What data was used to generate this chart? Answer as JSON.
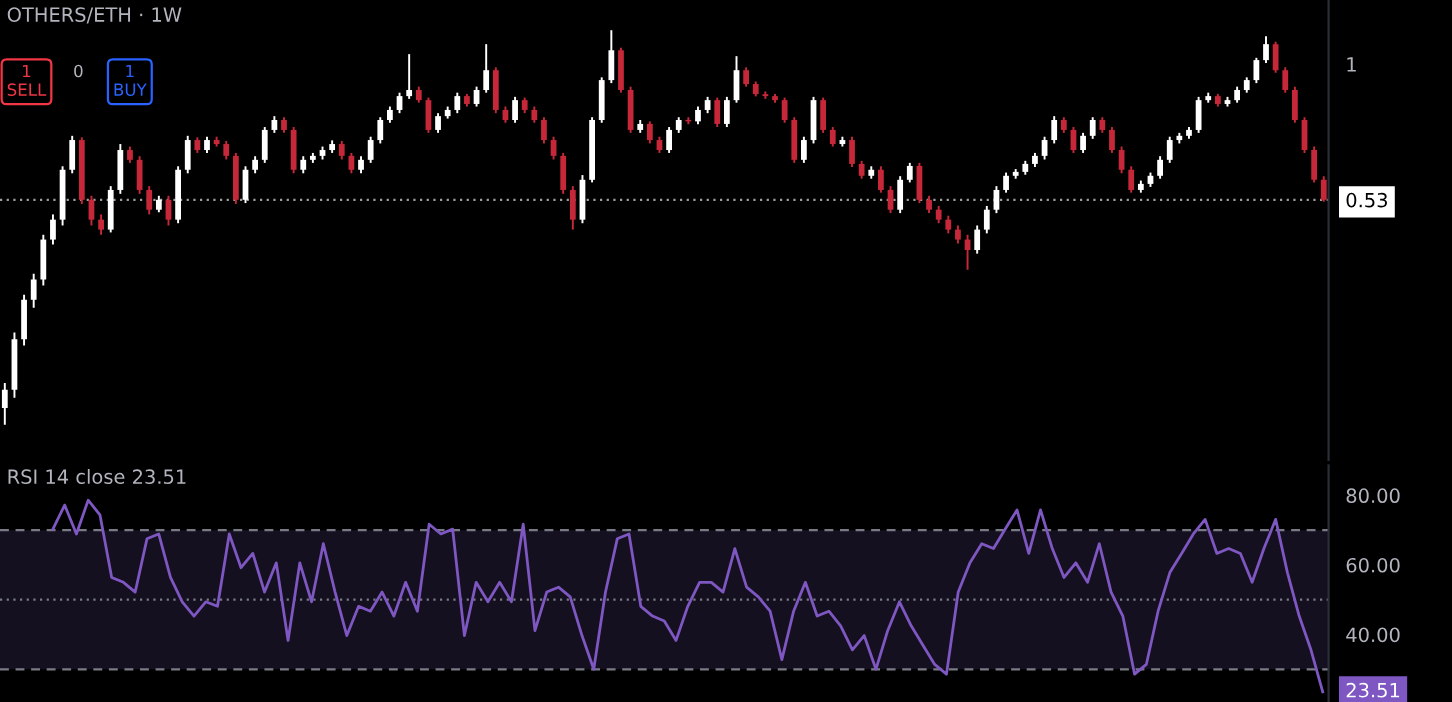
{
  "chart_data": [
    {
      "type": "candlestick",
      "title": "OTHERS/ETH · 1W",
      "log": "y",
      "ylim": [
        0.157,
        1.35
      ],
      "yticks": [
        {
          "value": 1,
          "label": "1"
        },
        {
          "value": 0.53,
          "label": "0.53"
        }
      ],
      "grid": false,
      "annotations": [
        "1\nSELL",
        "0",
        "1\nBUY"
      ],
      "colors": [
        "#ffffff",
        "#ffffff",
        "#ffffff",
        "#ffffff",
        "#ffffff",
        "#ffffff",
        "#ffffff",
        "#ffffff",
        "#c62839",
        "#c62839",
        "#c62839",
        "#ffffff",
        "#ffffff",
        "#c62839",
        "#c62839",
        "#c62839",
        "#ffffff",
        "#c62839",
        "#ffffff",
        "#ffffff",
        "#c62839",
        "#ffffff",
        "#c62839",
        "#c62839",
        "#c62839",
        "#ffffff",
        "#ffffff",
        "#ffffff",
        "#ffffff",
        "#c62839",
        "#c62839",
        "#ffffff",
        "#ffffff",
        "#ffffff",
        "#ffffff",
        "#c62839",
        "#c62839",
        "#ffffff",
        "#ffffff",
        "#ffffff",
        "#ffffff",
        "#ffffff",
        "#ffffff",
        "#c62839",
        "#c62839",
        "#ffffff",
        "#ffffff",
        "#ffffff",
        "#c62839",
        "#ffffff",
        "#ffffff",
        "#c62839",
        "#c62839",
        "#ffffff",
        "#c62839",
        "#c62839",
        "#c62839",
        "#c62839",
        "#c62839",
        "#c62839",
        "#ffffff",
        "#ffffff",
        "#ffffff",
        "#ffffff",
        "#c62839",
        "#c62839",
        "#ffffff",
        "#c62839",
        "#c62839",
        "#ffffff",
        "#ffffff",
        "#c62839",
        "#ffffff",
        "#ffffff",
        "#c62839",
        "#ffffff",
        "#ffffff",
        "#c62839",
        "#c62839",
        "#c62839",
        "#c62839",
        "#c62839",
        "#c62839",
        "#ffffff",
        "#ffffff",
        "#c62839",
        "#c62839",
        "#ffffff",
        "#c62839",
        "#c62839",
        "#ffffff",
        "#c62839",
        "#c62839",
        "#ffffff",
        "#ffffff",
        "#c62839",
        "#c62839",
        "#c62839",
        "#c62839",
        "#c62839",
        "#c62839",
        "#ffffff",
        "#ffffff",
        "#ffffff",
        "#ffffff",
        "#ffffff",
        "#ffffff",
        "#ffffff",
        "#ffffff",
        "#ffffff",
        "#c62839",
        "#c62839",
        "#ffffff",
        "#ffffff",
        "#c62839",
        "#c62839",
        "#c62839",
        "#c62839",
        "#ffffff",
        "#ffffff",
        "#ffffff",
        "#ffffff",
        "#ffffff",
        "#ffffff",
        "#ffffff",
        "#ffffff",
        "#c62839",
        "#ffffff",
        "#ffffff",
        "#ffffff",
        "#ffffff",
        "#ffffff",
        "#c62839",
        "#c62839",
        "#c62839",
        "#c62839",
        "#c62839",
        "#c62839"
      ],
      "ref_lines": [
        {
          "axis": "y",
          "value": 0.53,
          "label": null,
          "color": "#9e9e9e",
          "line_style": "dotted"
        }
      ],
      "categories": [
        null,
        null,
        null,
        null,
        null,
        null,
        null,
        null,
        null,
        null,
        null,
        null,
        null,
        null,
        null,
        null,
        null,
        null,
        null,
        null,
        null,
        null,
        null,
        null,
        null,
        null,
        null,
        null,
        null,
        null,
        null,
        null,
        null,
        null,
        null,
        null,
        null,
        null,
        null,
        null,
        null,
        null,
        null,
        null,
        null,
        null,
        null,
        null,
        null,
        null,
        null,
        null,
        null,
        null,
        null,
        null,
        null,
        null,
        null,
        null,
        null,
        null,
        null,
        null,
        null,
        null,
        null,
        null,
        null,
        null,
        null,
        null,
        null,
        null,
        null,
        null,
        null,
        null,
        null,
        null,
        null,
        null,
        null,
        null,
        null,
        null,
        null,
        null,
        null,
        null,
        null,
        null,
        null,
        null,
        null,
        null,
        null,
        null,
        null,
        null,
        null,
        null,
        null,
        null,
        null,
        null,
        null,
        null,
        null,
        null,
        null,
        null,
        null,
        null,
        null,
        null,
        null,
        null,
        null,
        null,
        null,
        null,
        null,
        null,
        null,
        null,
        null,
        null,
        null,
        null,
        null,
        null,
        null,
        null,
        null,
        null,
        null,
        null
      ],
      "ohlc": [
        [
          0.2,
          0.225,
          0.185,
          0.218
        ],
        [
          0.218,
          0.285,
          0.21,
          0.276
        ],
        [
          0.276,
          0.34,
          0.268,
          0.332
        ],
        [
          0.332,
          0.375,
          0.32,
          0.365
        ],
        [
          0.365,
          0.45,
          0.355,
          0.44
        ],
        [
          0.44,
          0.495,
          0.43,
          0.483
        ],
        [
          0.483,
          0.62,
          0.47,
          0.61
        ],
        [
          0.61,
          0.715,
          0.6,
          0.701
        ],
        [
          0.701,
          0.71,
          0.52,
          0.53
        ],
        [
          0.53,
          0.54,
          0.47,
          0.483
        ],
        [
          0.483,
          0.495,
          0.45,
          0.461
        ],
        [
          0.461,
          0.565,
          0.455,
          0.555
        ],
        [
          0.555,
          0.688,
          0.545,
          0.669
        ],
        [
          0.669,
          0.68,
          0.63,
          0.639
        ],
        [
          0.639,
          0.65,
          0.545,
          0.555
        ],
        [
          0.555,
          0.565,
          0.495,
          0.506
        ],
        [
          0.506,
          0.54,
          0.5,
          0.53
        ],
        [
          0.53,
          0.54,
          0.47,
          0.483
        ],
        [
          0.483,
          0.62,
          0.475,
          0.61
        ],
        [
          0.61,
          0.715,
          0.6,
          0.701
        ],
        [
          0.701,
          0.71,
          0.66,
          0.669
        ],
        [
          0.669,
          0.712,
          0.66,
          0.701
        ],
        [
          0.701,
          0.712,
          0.68,
          0.688
        ],
        [
          0.688,
          0.698,
          0.64,
          0.651
        ],
        [
          0.651,
          0.66,
          0.52,
          0.53
        ],
        [
          0.53,
          0.62,
          0.522,
          0.61
        ],
        [
          0.61,
          0.65,
          0.6,
          0.639
        ],
        [
          0.639,
          0.745,
          0.63,
          0.735
        ],
        [
          0.735,
          0.784,
          0.725,
          0.77
        ],
        [
          0.77,
          0.78,
          0.725,
          0.735
        ],
        [
          0.735,
          0.745,
          0.6,
          0.61
        ],
        [
          0.61,
          0.65,
          0.6,
          0.639
        ],
        [
          0.639,
          0.66,
          0.63,
          0.651
        ],
        [
          0.651,
          0.68,
          0.64,
          0.669
        ],
        [
          0.669,
          0.7,
          0.66,
          0.688
        ],
        [
          0.688,
          0.698,
          0.64,
          0.651
        ],
        [
          0.651,
          0.66,
          0.6,
          0.61
        ],
        [
          0.61,
          0.65,
          0.6,
          0.639
        ],
        [
          0.639,
          0.712,
          0.63,
          0.701
        ],
        [
          0.701,
          0.78,
          0.69,
          0.77
        ],
        [
          0.77,
          0.82,
          0.76,
          0.807
        ],
        [
          0.807,
          0.875,
          0.795,
          0.861
        ],
        [
          0.861,
          1.048,
          0.85,
          0.886
        ],
        [
          0.886,
          0.9,
          0.835,
          0.845
        ],
        [
          0.845,
          0.855,
          0.725,
          0.735
        ],
        [
          0.735,
          0.795,
          0.725,
          0.784
        ],
        [
          0.784,
          0.82,
          0.775,
          0.807
        ],
        [
          0.807,
          0.875,
          0.795,
          0.861
        ],
        [
          0.861,
          0.87,
          0.82,
          0.83
        ],
        [
          0.83,
          0.9,
          0.82,
          0.886
        ],
        [
          0.886,
          1.098,
          0.875,
          0.972
        ],
        [
          0.972,
          0.985,
          0.795,
          0.807
        ],
        [
          0.807,
          0.82,
          0.76,
          0.77
        ],
        [
          0.77,
          0.858,
          0.76,
          0.845
        ],
        [
          0.845,
          0.855,
          0.795,
          0.807
        ],
        [
          0.807,
          0.82,
          0.76,
          0.77
        ],
        [
          0.77,
          0.78,
          0.69,
          0.701
        ],
        [
          0.701,
          0.712,
          0.64,
          0.651
        ],
        [
          0.651,
          0.66,
          0.545,
          0.555
        ],
        [
          0.555,
          0.565,
          0.461,
          0.483
        ],
        [
          0.483,
          0.595,
          0.475,
          0.582
        ],
        [
          0.582,
          0.78,
          0.575,
          0.77
        ],
        [
          0.77,
          0.94,
          0.76,
          0.928
        ],
        [
          0.928,
          1.172,
          0.915,
          1.067
        ],
        [
          1.067,
          1.08,
          0.875,
          0.886
        ],
        [
          0.886,
          0.9,
          0.725,
          0.735
        ],
        [
          0.735,
          0.77,
          0.725,
          0.756
        ],
        [
          0.756,
          0.765,
          0.69,
          0.701
        ],
        [
          0.701,
          0.712,
          0.66,
          0.669
        ],
        [
          0.669,
          0.745,
          0.66,
          0.735
        ],
        [
          0.735,
          0.78,
          0.725,
          0.77
        ],
        [
          0.77,
          0.78,
          0.755,
          0.765
        ],
        [
          0.765,
          0.82,
          0.755,
          0.807
        ],
        [
          0.807,
          0.858,
          0.795,
          0.845
        ],
        [
          0.845,
          0.855,
          0.745,
          0.756
        ],
        [
          0.756,
          0.858,
          0.745,
          0.845
        ],
        [
          0.845,
          1.038,
          0.835,
          0.972
        ],
        [
          0.972,
          0.985,
          0.9,
          0.911
        ],
        [
          0.911,
          0.922,
          0.86,
          0.869
        ],
        [
          0.869,
          0.88,
          0.85,
          0.861
        ],
        [
          0.861,
          0.87,
          0.835,
          0.845
        ],
        [
          0.845,
          0.855,
          0.76,
          0.77
        ],
        [
          0.77,
          0.78,
          0.63,
          0.639
        ],
        [
          0.639,
          0.712,
          0.63,
          0.701
        ],
        [
          0.701,
          0.858,
          0.69,
          0.845
        ],
        [
          0.845,
          0.855,
          0.725,
          0.735
        ],
        [
          0.735,
          0.745,
          0.68,
          0.688
        ],
        [
          0.688,
          0.712,
          0.68,
          0.701
        ],
        [
          0.701,
          0.712,
          0.618,
          0.627
        ],
        [
          0.627,
          0.636,
          0.585,
          0.593
        ],
        [
          0.593,
          0.62,
          0.585,
          0.61
        ],
        [
          0.61,
          0.62,
          0.548,
          0.555
        ],
        [
          0.555,
          0.565,
          0.498,
          0.506
        ],
        [
          0.506,
          0.592,
          0.498,
          0.582
        ],
        [
          0.582,
          0.63,
          0.575,
          0.621
        ],
        [
          0.621,
          0.63,
          0.522,
          0.53
        ],
        [
          0.53,
          0.54,
          0.498,
          0.506
        ],
        [
          0.506,
          0.515,
          0.475,
          0.483
        ],
        [
          0.483,
          0.492,
          0.453,
          0.461
        ],
        [
          0.461,
          0.47,
          0.432,
          0.44
        ],
        [
          0.44,
          0.45,
          0.382,
          0.419
        ],
        [
          0.419,
          0.47,
          0.412,
          0.461
        ],
        [
          0.461,
          0.515,
          0.453,
          0.506
        ],
        [
          0.506,
          0.565,
          0.498,
          0.555
        ],
        [
          0.555,
          0.602,
          0.548,
          0.593
        ],
        [
          0.593,
          0.612,
          0.585,
          0.604
        ],
        [
          0.604,
          0.636,
          0.596,
          0.627
        ],
        [
          0.627,
          0.66,
          0.618,
          0.651
        ],
        [
          0.651,
          0.712,
          0.64,
          0.701
        ],
        [
          0.701,
          0.784,
          0.69,
          0.77
        ],
        [
          0.77,
          0.78,
          0.725,
          0.735
        ],
        [
          0.735,
          0.745,
          0.66,
          0.669
        ],
        [
          0.669,
          0.725,
          0.66,
          0.715
        ],
        [
          0.715,
          0.78,
          0.705,
          0.77
        ],
        [
          0.77,
          0.78,
          0.725,
          0.735
        ],
        [
          0.735,
          0.745,
          0.66,
          0.669
        ],
        [
          0.669,
          0.68,
          0.6,
          0.61
        ],
        [
          0.61,
          0.62,
          0.548,
          0.555
        ],
        [
          0.555,
          0.58,
          0.548,
          0.571
        ],
        [
          0.571,
          0.602,
          0.563,
          0.593
        ],
        [
          0.593,
          0.65,
          0.585,
          0.639
        ],
        [
          0.639,
          0.712,
          0.63,
          0.701
        ],
        [
          0.701,
          0.725,
          0.69,
          0.715
        ],
        [
          0.715,
          0.745,
          0.705,
          0.735
        ],
        [
          0.735,
          0.858,
          0.725,
          0.845
        ],
        [
          0.845,
          0.875,
          0.835,
          0.861
        ],
        [
          0.861,
          0.87,
          0.82,
          0.83
        ],
        [
          0.83,
          0.858,
          0.82,
          0.845
        ],
        [
          0.845,
          0.9,
          0.835,
          0.886
        ],
        [
          0.886,
          0.94,
          0.875,
          0.928
        ],
        [
          0.928,
          1.03,
          0.915,
          1.019
        ],
        [
          1.019,
          1.14,
          1.005,
          1.098
        ],
        [
          1.098,
          1.11,
          0.96,
          0.972
        ],
        [
          0.972,
          0.985,
          0.875,
          0.886
        ],
        [
          0.886,
          0.9,
          0.76,
          0.77
        ],
        [
          0.77,
          0.78,
          0.66,
          0.669
        ],
        [
          0.669,
          0.68,
          0.575,
          0.582
        ],
        [
          0.582,
          0.592,
          0.525,
          0.53
        ]
      ]
    },
    {
      "type": "line",
      "title": "RSI 14 close 23.51",
      "ylim": [
        20.6,
        88.6
      ],
      "yticks": [
        {
          "value": 80,
          "label": "80.00"
        },
        {
          "value": 60,
          "label": "60.00"
        },
        {
          "value": 40,
          "label": "40.00"
        }
      ],
      "grid": false,
      "marker": "none",
      "line_style": "solid",
      "annotations": [
        "23.51"
      ],
      "ref_lines": [
        {
          "axis": "y",
          "value": 70,
          "label": null,
          "color": "#787b86",
          "line_style": "dashed"
        },
        {
          "axis": "y",
          "value": 50,
          "label": null,
          "color": "#787b86",
          "line_style": "dotted"
        },
        {
          "axis": "y",
          "value": 30,
          "label": null,
          "color": "#787b86",
          "line_style": "dashed"
        }
      ],
      "bands": [
        {
          "axis": "y",
          "from": 30,
          "to": 70,
          "label": null,
          "color": "#15101f"
        }
      ],
      "categories": [
        null,
        null,
        null,
        null,
        null,
        null,
        null,
        null,
        null,
        null,
        null,
        null,
        null,
        null,
        null,
        null,
        null,
        null,
        null,
        null,
        null,
        null,
        null,
        null,
        null,
        null,
        null,
        null,
        null,
        null,
        null,
        null,
        null,
        null,
        null,
        null,
        null,
        null,
        null,
        null,
        null,
        null,
        null,
        null,
        null,
        null,
        null,
        null,
        null,
        null,
        null,
        null,
        null,
        null,
        null,
        null,
        null,
        null,
        null,
        null,
        null,
        null,
        null,
        null,
        null,
        null,
        null,
        null,
        null,
        null,
        null,
        null,
        null,
        null,
        null,
        null,
        null,
        null,
        null,
        null,
        null,
        null,
        null,
        null,
        null,
        null,
        null,
        null,
        null,
        null,
        null,
        null,
        null,
        null,
        null,
        null,
        null,
        null,
        null,
        null,
        null,
        null,
        null,
        null,
        null,
        null,
        null,
        null,
        null,
        null,
        null,
        null,
        null
      ],
      "series": [
        {
          "color": "#7e57c2",
          "values": [
            null,
            null,
            null,
            null,
            70.3,
            77.2,
            68.9,
            78.6,
            74.4,
            56.4,
            55,
            52.2,
            67.5,
            68.9,
            56.4,
            49.4,
            45.3,
            49.4,
            48.1,
            68.9,
            59.2,
            63.3,
            52.2,
            60.6,
            38.3,
            60.6,
            49.4,
            66.1,
            52.2,
            39.7,
            48.1,
            46.7,
            52.2,
            45.3,
            55,
            46.7,
            71.7,
            68.9,
            70.3,
            39.7,
            55,
            49.4,
            55,
            49.4,
            71.7,
            41.1,
            52.2,
            53.6,
            50.8,
            39.7,
            30,
            52.2,
            67.5,
            68.9,
            48.1,
            45.3,
            43.9,
            38.3,
            48.1,
            55,
            55,
            52.2,
            64.7,
            53.6,
            50.8,
            46.7,
            32.8,
            46.7,
            55,
            45.3,
            46.7,
            42.5,
            35.6,
            39.7,
            30,
            41.1,
            49.4,
            42.5,
            36.9,
            31.4,
            28.6,
            52.2,
            60.6,
            66.1,
            64.7,
            70.3,
            75.8,
            63.3,
            75.8,
            64.7,
            56.4,
            60.6,
            55,
            66.1,
            52.2,
            45.3,
            28.6,
            31.4,
            46.7,
            57.8,
            63.3,
            68.9,
            73.1,
            63.3,
            64.7,
            63.3,
            55,
            64.7,
            73.1,
            57.8,
            45.3,
            35.6,
            23.51
          ]
        }
      ]
    }
  ]
}
